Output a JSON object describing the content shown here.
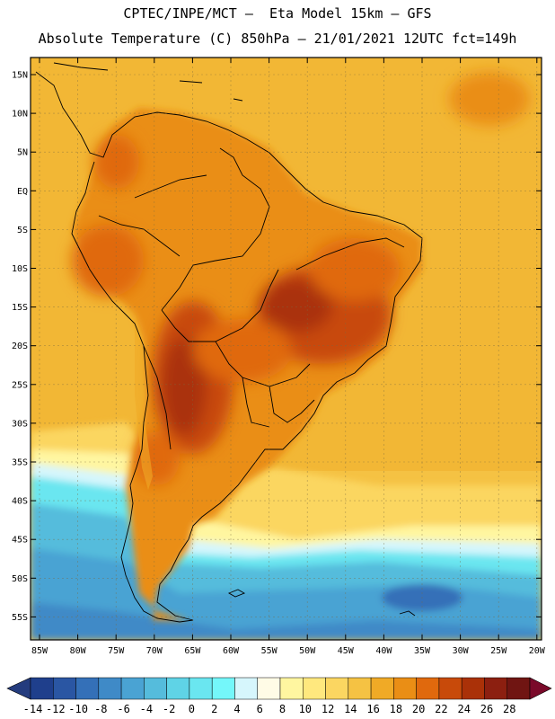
{
  "title_line1": "CPTEC/INPE/MCT –  Eta Model 15km – GFS",
  "title_line2": "Absolute Temperature (C) 850hPa – 21/01/2021 12UTC fct=149h",
  "map": {
    "lat_ticks": [
      "15N",
      "10N",
      "5N",
      "EQ",
      "5S",
      "10S",
      "15S",
      "20S",
      "25S",
      "30S",
      "35S",
      "40S",
      "45S",
      "50S",
      "55S"
    ],
    "lon_ticks": [
      "85W",
      "80W",
      "75W",
      "70W",
      "65W",
      "60W",
      "55W",
      "50W",
      "45W",
      "40W",
      "35W",
      "30W",
      "25W",
      "20W"
    ]
  },
  "colorbar": {
    "labels": [
      "-14",
      "-12",
      "-10",
      "-8",
      "-6",
      "-4",
      "-2",
      "0",
      "2",
      "4",
      "6",
      "8",
      "10",
      "12",
      "14",
      "16",
      "18",
      "20",
      "22",
      "24",
      "26",
      "28"
    ],
    "colors": [
      "#1f3f8c",
      "#2a56a3",
      "#3470b8",
      "#3f8ac7",
      "#4aa3d3",
      "#55bcdc",
      "#5fd3e6",
      "#6ae6f0",
      "#74f7fa",
      "#d6f6fc",
      "#fffbe6",
      "#fff6a0",
      "#ffe87e",
      "#fbd661",
      "#f5c243",
      "#f0aa26",
      "#ea8e15",
      "#e0690d",
      "#c84a0a",
      "#aa3108",
      "#8c1f10",
      "#701512"
    ],
    "left_arrow_color": "#243c7e",
    "right_arrow_color": "#7a0a2a"
  }
}
